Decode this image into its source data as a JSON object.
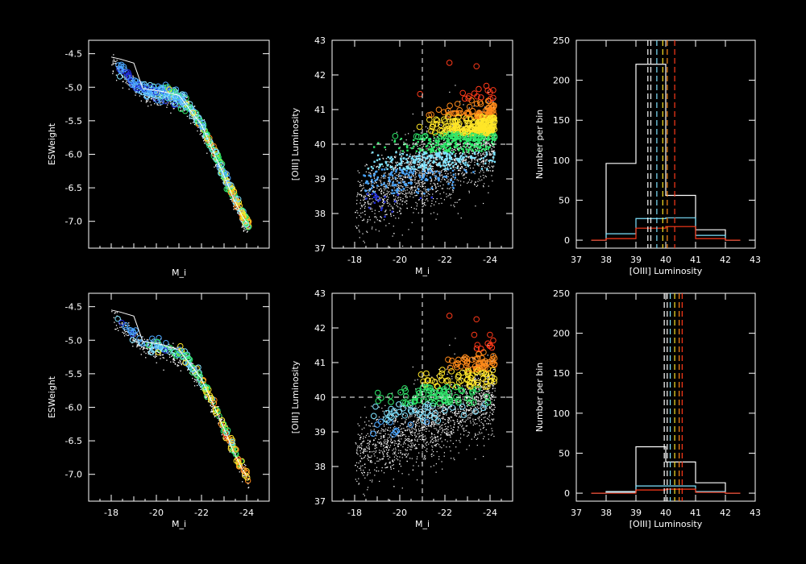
{
  "colors": {
    "background": "#000000",
    "axes": "#ffffff",
    "luminosity_bins": [
      "#1f2bd6",
      "#4aa6ff",
      "#7fe3ff",
      "#2ee86a",
      "#ffe628",
      "#ff8a1a",
      "#ff3a1a"
    ]
  },
  "chart_data": [
    {
      "panel": "top-left",
      "type": "scatter",
      "title": "",
      "xlabel": "M_i",
      "ylabel": "ESWeight",
      "xlim": [
        -17,
        -25
      ],
      "ylim": [
        -7.4,
        -4.3
      ],
      "xticks": [],
      "yticks": [
        "-4.5",
        "-5.0",
        "-5.5",
        "-6.0",
        "-6.5",
        "-7.0"
      ],
      "envelope_line": {
        "x": [
          -18.0,
          -18.4,
          -19.0,
          -19.4,
          -20.2,
          -21.0,
          -22.0,
          -22.6,
          -23.0,
          -23.4,
          -23.8,
          -24.0
        ],
        "y": [
          -4.55,
          -4.58,
          -4.64,
          -5.02,
          -5.06,
          -5.12,
          -5.56,
          -6.02,
          -6.32,
          -6.65,
          -6.92,
          -7.02
        ]
      },
      "trend": {
        "x": [
          -18.0,
          -19.0,
          -19.6,
          -20.5,
          -21.3,
          -22.0,
          -22.6,
          -23.0,
          -23.4,
          -23.8,
          -24.0
        ],
        "y": [
          -4.58,
          -4.92,
          -5.08,
          -5.1,
          -5.2,
          -5.55,
          -6.0,
          -6.3,
          -6.6,
          -6.9,
          -7.02
        ]
      },
      "note": "circles colored by [OIII] luminosity bin"
    },
    {
      "panel": "top-middle",
      "type": "scatter",
      "title": "",
      "xlabel": "M_i",
      "ylabel": "[OIII] Luminosity",
      "xlim": [
        -17,
        -25
      ],
      "ylim": [
        37,
        43
      ],
      "xticks": [
        "-18",
        "-20",
        "-22",
        "-24"
      ],
      "yticks": [
        "37",
        "38",
        "39",
        "40",
        "41",
        "42",
        "43"
      ],
      "reference_lines": {
        "x": -21,
        "y": 40
      },
      "highlight_points": [
        {
          "x": -22.2,
          "y": 42.35
        },
        {
          "x": -23.4,
          "y": 42.25
        },
        {
          "x": -20.9,
          "y": 41.45
        },
        {
          "x": -23.9,
          "y": 41.55
        },
        {
          "x": -24.0,
          "y": 41.5
        },
        {
          "x": -23.6,
          "y": 41.35
        }
      ]
    },
    {
      "panel": "top-right",
      "type": "histogram",
      "title": "",
      "xlabel": "[OIII] Luminosity",
      "ylabel": "Number per bin",
      "xlim": [
        37,
        43
      ],
      "ylim": [
        -10,
        250
      ],
      "xticks": [
        "37",
        "38",
        "39",
        "40",
        "41",
        "42",
        "43"
      ],
      "yticks": [
        "0",
        "50",
        "100",
        "150",
        "200",
        "250"
      ],
      "bin_edges": [
        37.5,
        38,
        39,
        40,
        41,
        42,
        42.5
      ],
      "series": [
        {
          "color": "#ffffff",
          "values": [
            0,
            96,
            220,
            56,
            13,
            0
          ]
        },
        {
          "color": "#7fe3ff",
          "values": [
            0,
            8,
            27,
            28,
            6,
            0
          ]
        },
        {
          "color": "#ff3a1a",
          "values": [
            0,
            2,
            15,
            17,
            2,
            0
          ]
        }
      ],
      "vlines": [
        {
          "x": 39.4,
          "color": "#ffffff"
        },
        {
          "x": 39.5,
          "color": "#ffffff"
        },
        {
          "x": 39.7,
          "color": "#7fe3ff"
        },
        {
          "x": 39.9,
          "color": "#ffe628"
        },
        {
          "x": 40.05,
          "color": "#ff8a1a"
        },
        {
          "x": 40.3,
          "color": "#ff3a1a"
        }
      ]
    },
    {
      "panel": "bottom-left",
      "type": "scatter",
      "title": "",
      "xlabel": "M_i",
      "ylabel": "ESWeight",
      "xlim": [
        -17,
        -25
      ],
      "ylim": [
        -7.4,
        -4.3
      ],
      "xticks": [
        "-18",
        "-20",
        "-22",
        "-24"
      ],
      "yticks": [
        "-4.5",
        "-5.0",
        "-5.5",
        "-6.0",
        "-6.5",
        "-7.0"
      ],
      "envelope_line": {
        "x": [
          -18.0,
          -18.4,
          -19.0,
          -19.4,
          -20.2,
          -21.0,
          -22.0,
          -22.6,
          -23.0,
          -23.4,
          -23.8,
          -24.0
        ],
        "y": [
          -4.55,
          -4.58,
          -4.64,
          -5.02,
          -5.06,
          -5.14,
          -5.58,
          -6.02,
          -6.32,
          -6.65,
          -6.92,
          -7.02
        ]
      },
      "trend": {
        "x": [
          -18.0,
          -19.0,
          -19.6,
          -20.5,
          -21.3,
          -22.0,
          -22.6,
          -23.0,
          -23.4,
          -23.8,
          -24.0
        ],
        "y": [
          -4.58,
          -4.92,
          -5.08,
          -5.12,
          -5.25,
          -5.6,
          -6.0,
          -6.3,
          -6.6,
          -6.9,
          -7.02
        ]
      }
    },
    {
      "panel": "bottom-middle",
      "type": "scatter",
      "title": "",
      "xlabel": "M_i",
      "ylabel": "[OIII] Luminosity",
      "xlim": [
        -17,
        -25
      ],
      "ylim": [
        37,
        43
      ],
      "xticks": [
        "-18",
        "-20",
        "-22",
        "-24"
      ],
      "yticks": [
        "37",
        "38",
        "39",
        "40",
        "41",
        "42",
        "43"
      ],
      "reference_lines": {
        "x": -21,
        "y": 40
      },
      "highlight_points": [
        {
          "x": -22.2,
          "y": 42.35
        },
        {
          "x": -23.4,
          "y": 42.25
        },
        {
          "x": -23.3,
          "y": 41.8
        },
        {
          "x": -23.9,
          "y": 41.55
        },
        {
          "x": -24.0,
          "y": 41.5
        },
        {
          "x": -23.6,
          "y": 41.4
        }
      ]
    },
    {
      "panel": "bottom-right",
      "type": "histogram",
      "title": "",
      "xlabel": "[OIII] Luminosity",
      "ylabel": "Number per bin",
      "xlim": [
        37,
        43
      ],
      "ylim": [
        -10,
        250
      ],
      "xticks": [
        "37",
        "38",
        "39",
        "40",
        "41",
        "42",
        "43"
      ],
      "yticks": [
        "0",
        "50",
        "100",
        "150",
        "200",
        "250"
      ],
      "bin_edges": [
        37.5,
        38,
        39,
        40,
        41,
        42,
        42.5
      ],
      "series": [
        {
          "color": "#ffffff",
          "values": [
            0,
            2,
            58,
            39,
            13,
            0
          ]
        },
        {
          "color": "#7fe3ff",
          "values": [
            0,
            1,
            9,
            9,
            2,
            0
          ]
        },
        {
          "color": "#ff3a1a",
          "values": [
            0,
            0,
            4,
            5,
            1,
            0
          ]
        }
      ],
      "vlines": [
        {
          "x": 39.95,
          "color": "#ffffff"
        },
        {
          "x": 40.05,
          "color": "#ffffff"
        },
        {
          "x": 40.15,
          "color": "#7fe3ff"
        },
        {
          "x": 40.3,
          "color": "#ffe628"
        },
        {
          "x": 40.45,
          "color": "#ff8a1a"
        },
        {
          "x": 40.55,
          "color": "#ff3a1a"
        }
      ]
    }
  ]
}
